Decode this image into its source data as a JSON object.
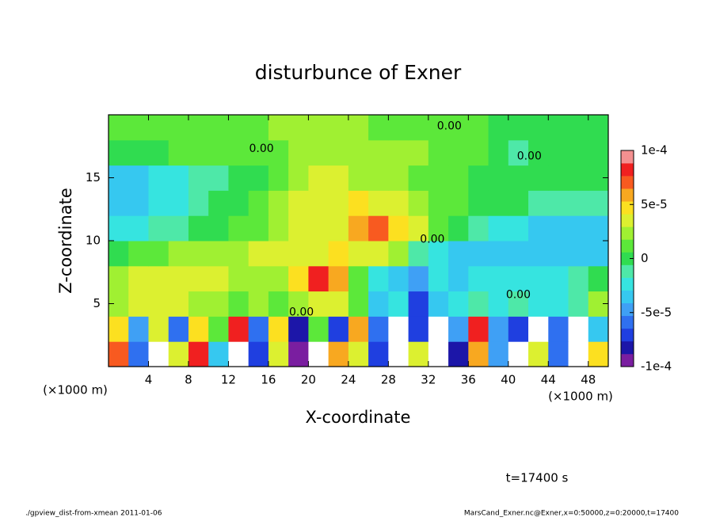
{
  "chart_data": {
    "type": "contour",
    "title": "disturbunce of Exner",
    "xlabel": "X-coordinate",
    "ylabel": "Z-coordinate",
    "x_unit_labels": [
      "(×1000 m)",
      "(×1000 m)"
    ],
    "time_label": "t=17400 s",
    "footer_left": "./gpview_dist-from-xmean  2011-01-06",
    "footer_right": "MarsCand_Exner.nc@Exner,x=0:50000,z=0:20000,t=17400",
    "xlim": [
      0,
      50
    ],
    "ylim": [
      0,
      20
    ],
    "xticks": [
      4,
      8,
      12,
      16,
      20,
      24,
      28,
      32,
      36,
      40,
      44,
      48
    ],
    "yticks": [
      5,
      10,
      15
    ],
    "clim": [
      -0.0001,
      0.0001
    ],
    "cticks": [
      {
        "value": 0.0001,
        "label": "1e-4"
      },
      {
        "value": 5e-05,
        "label": "5e-5"
      },
      0,
      {
        "value": -5e-05,
        "label": "-5e-5"
      },
      {
        "value": -0.0001,
        "label": "-1e-4"
      }
    ],
    "colors": [
      "#7a1ea0",
      "#1c16a8",
      "#1f3fe0",
      "#2f70f0",
      "#3fa0f5",
      "#36c8f0",
      "#36e4e0",
      "#4ee8a8",
      "#30dc50",
      "#5ce83a",
      "#a0f032",
      "#dcf030",
      "#fce020",
      "#f8a820",
      "#f85a20",
      "#f02020",
      "#f49090"
    ],
    "x": [
      1,
      3,
      5,
      7,
      9,
      11,
      13,
      15,
      17,
      19,
      21,
      23,
      25,
      27,
      29,
      31,
      33,
      35,
      37,
      39,
      41,
      43,
      45,
      47,
      49
    ],
    "y": [
      1,
      3,
      5,
      7,
      9,
      11,
      13,
      15,
      17,
      19
    ],
    "z": [
      [
        7e-05,
        -6e-05,
        0.00012,
        3e-05,
        8e-05,
        -4e-05,
        0.00012,
        -7e-05,
        3e-05,
        -9e-05,
        0.00012,
        6e-05,
        3e-05,
        -7e-05,
        0.00012,
        4e-05,
        0.00012,
        -8e-05,
        6e-05,
        -5e-05,
        0.00012,
        3e-05,
        -6e-05,
        0.00012,
        5e-05
      ],
      [
        5e-05,
        -5e-05,
        3e-05,
        -6e-05,
        5e-05,
        1e-05,
        8e-05,
        -6e-05,
        5e-05,
        -8e-05,
        1e-05,
        -7e-05,
        6e-05,
        -6e-05,
        0.00012,
        -7e-05,
        0.00012,
        -5e-05,
        8e-05,
        -5e-05,
        -7e-05,
        0.00012,
        -6e-05,
        0.00012,
        -4e-05
      ],
      [
        2e-05,
        3e-05,
        4e-05,
        3e-05,
        2e-05,
        2e-05,
        1e-05,
        2e-05,
        1e-05,
        2e-05,
        4e-05,
        3e-05,
        1e-05,
        -3e-05,
        -2e-05,
        -7e-05,
        -4e-05,
        -2e-05,
        -1e-05,
        -2e-05,
        -1e-05,
        -2e-05,
        -2e-05,
        -1e-05,
        2e-05
      ],
      [
        2e-05,
        3e-05,
        3e-05,
        3e-05,
        4e-05,
        3e-05,
        2e-05,
        2e-05,
        2e-05,
        5e-05,
        8e-05,
        6e-05,
        1e-05,
        -2e-05,
        -3e-05,
        -5e-05,
        -2e-05,
        -3e-05,
        -2e-05,
        -2e-05,
        -2e-05,
        -2e-05,
        -2e-05,
        -1e-05,
        0
      ],
      [
        0,
        1e-05,
        1e-05,
        2e-05,
        2e-05,
        2e-05,
        2e-05,
        3e-05,
        3e-05,
        4e-05,
        4e-05,
        5e-05,
        4e-05,
        3e-05,
        2e-05,
        -1e-05,
        -2e-05,
        -3e-05,
        -3e-05,
        -3e-05,
        -3e-05,
        -4e-05,
        -4e-05,
        -3e-05,
        -3e-05
      ],
      [
        -2e-05,
        -2e-05,
        -1e-05,
        -1e-05,
        0,
        0,
        1e-05,
        1e-05,
        2e-05,
        3e-05,
        4e-05,
        4e-05,
        6e-05,
        7e-05,
        5e-05,
        3e-05,
        1e-05,
        0,
        -1e-05,
        -2e-05,
        -2e-05,
        -3e-05,
        -3e-05,
        -4e-05,
        -3e-05
      ],
      [
        -4e-05,
        -3e-05,
        -2e-05,
        -2e-05,
        -1e-05,
        0,
        0,
        1e-05,
        2e-05,
        3e-05,
        3e-05,
        4e-05,
        5e-05,
        4e-05,
        3e-05,
        2e-05,
        1e-05,
        1e-05,
        0,
        0,
        0,
        -1e-05,
        -1e-05,
        -1e-05,
        -1e-05
      ],
      [
        -3e-05,
        -3e-05,
        -2e-05,
        -2e-05,
        -1e-05,
        -1e-05,
        0,
        0,
        1e-05,
        2e-05,
        3e-05,
        3e-05,
        2e-05,
        2e-05,
        2e-05,
        1e-05,
        1e-05,
        1e-05,
        0,
        0,
        0,
        0,
        0,
        0,
        0
      ],
      [
        0,
        0,
        0,
        1e-05,
        1e-05,
        1e-05,
        1e-05,
        1e-05,
        1e-05,
        2e-05,
        2e-05,
        2e-05,
        2e-05,
        2e-05,
        2e-05,
        2e-05,
        1e-05,
        1e-05,
        1e-05,
        0,
        -1e-05,
        0,
        0,
        0,
        0
      ],
      [
        1e-05,
        1e-05,
        1e-05,
        1e-05,
        1e-05,
        1e-05,
        1e-05,
        1e-05,
        2e-05,
        2e-05,
        2e-05,
        2e-05,
        2e-05,
        1e-05,
        1e-05,
        1e-05,
        1e-05,
        1e-05,
        1e-05,
        0,
        0,
        0,
        0,
        0,
        0
      ]
    ],
    "contour_labels": [
      {
        "value": 0,
        "label": "0.00",
        "x": 34.1,
        "y": 19.1
      },
      {
        "value": 0,
        "label": "0.00",
        "x": 15.3,
        "y": 17.3
      },
      {
        "value": 0,
        "label": "0.00",
        "x": 42.1,
        "y": 16.7
      },
      {
        "value": 0,
        "label": "0.00",
        "x": 32.4,
        "y": 10.1
      },
      {
        "value": 0,
        "label": "0.00",
        "x": 19.3,
        "y": 4.3
      },
      {
        "value": 0,
        "label": "0.00",
        "x": 41.0,
        "y": 5.7
      }
    ]
  }
}
